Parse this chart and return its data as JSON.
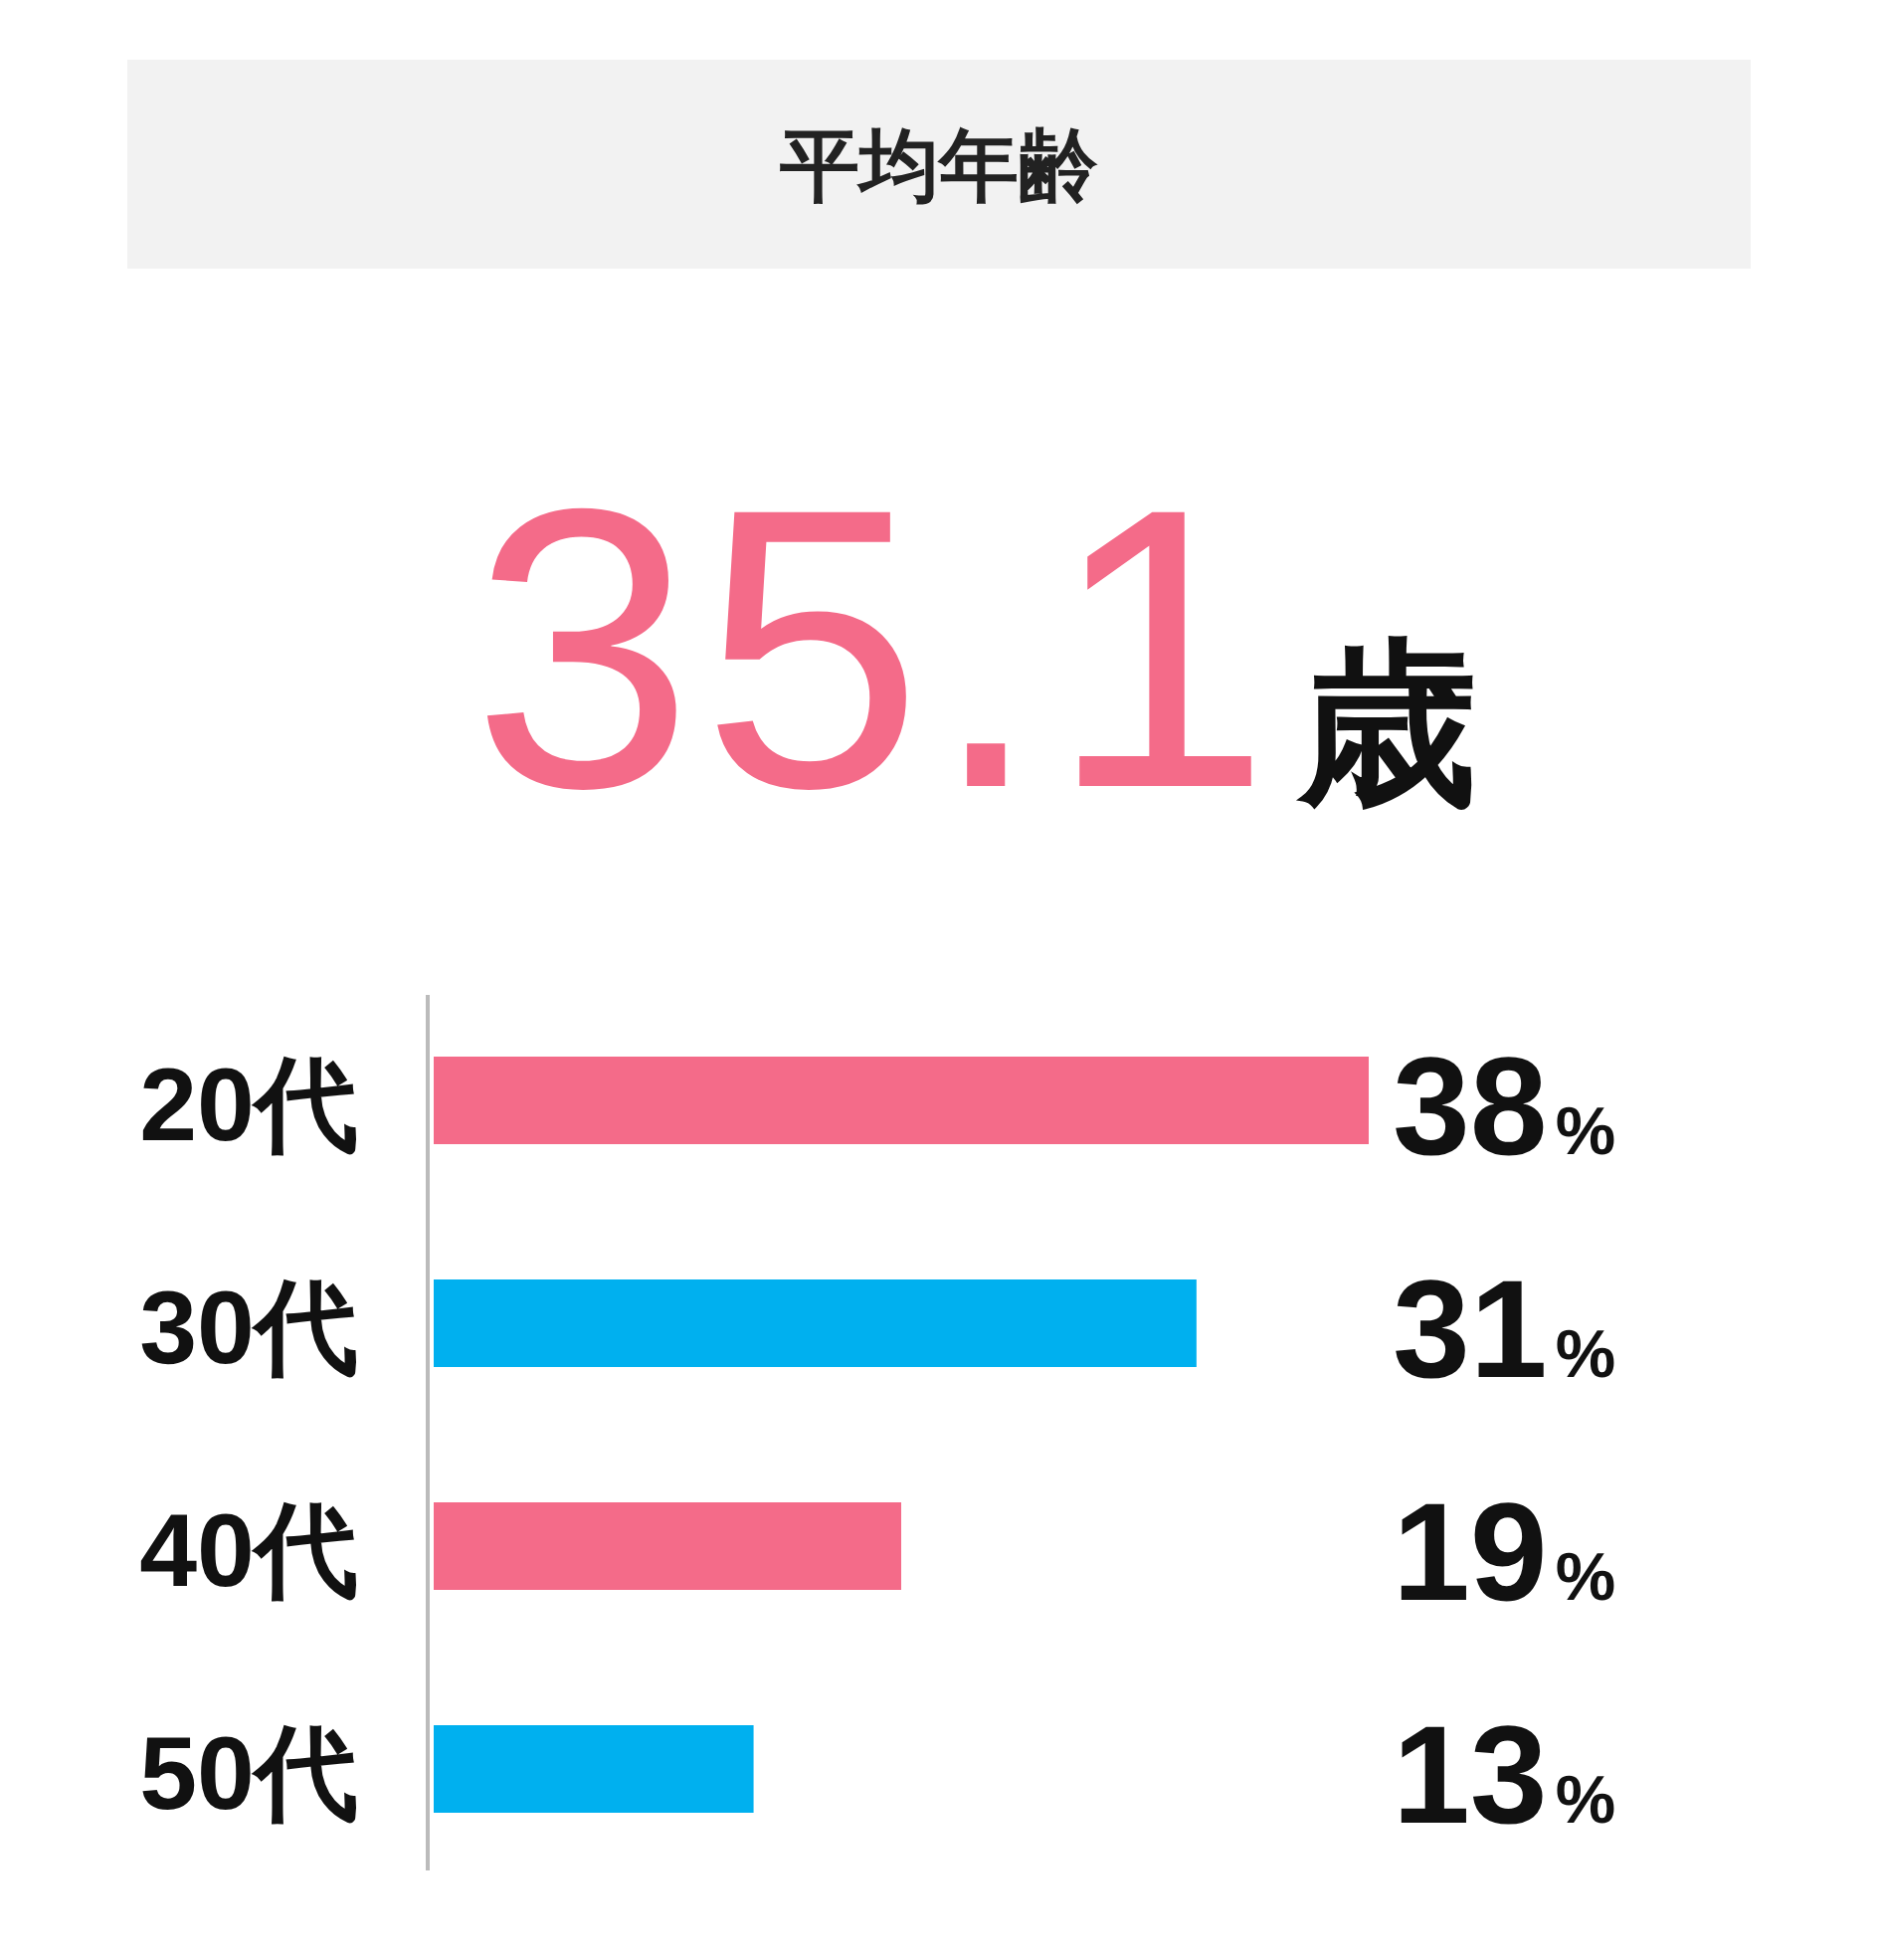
{
  "chart_data": {
    "type": "bar",
    "orientation": "horizontal",
    "title": "平均年齢",
    "annotations": [
      "35.1歳"
    ],
    "categories": [
      "20代",
      "30代",
      "40代",
      "50代"
    ],
    "values": [
      38,
      31,
      19,
      13
    ],
    "colors": [
      "#f46b89",
      "#00b0ef",
      "#f46b89",
      "#00b0ef"
    ],
    "value_labels": [
      "38%",
      "31%",
      "19%",
      "13%"
    ]
  }
}
